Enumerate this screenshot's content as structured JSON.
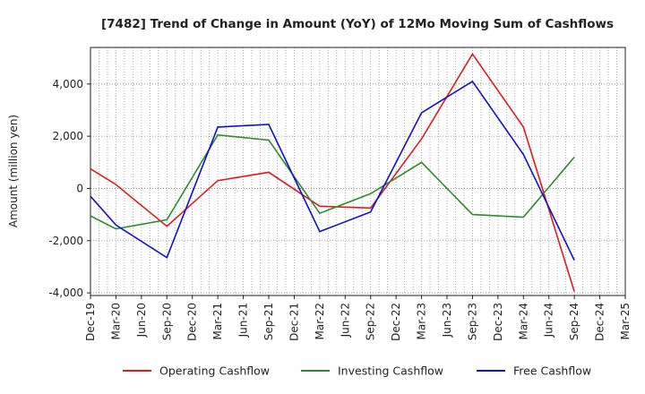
{
  "chart_data": {
    "type": "line",
    "title": "[7482]  Trend of Change in Amount (YoY) of 12Mo Moving Sum of Cashflows",
    "xlabel": "",
    "ylabel": "Amount (million yen)",
    "ylim": [
      -4100,
      5400
    ],
    "yticks": [
      -4000,
      -2000,
      0,
      2000,
      4000
    ],
    "ytick_labels": [
      "-4,000",
      "-2,000",
      "0",
      "2,000",
      "4,000"
    ],
    "grid": true,
    "legend_position": "bottom",
    "categories": [
      "Dec-19",
      "Mar-20",
      "Jun-20",
      "Sep-20",
      "Dec-20",
      "Mar-21",
      "Jun-21",
      "Sep-21",
      "Dec-21",
      "Mar-22",
      "Jun-22",
      "Sep-22",
      "Dec-22",
      "Mar-23",
      "Jun-23",
      "Sep-23",
      "Dec-23",
      "Mar-24",
      "Jun-24",
      "Sep-24",
      "Dec-24",
      "Mar-25"
    ],
    "series": [
      {
        "name": "Operating Cashflow",
        "color": "#e31a1c",
        "values": [
          750,
          150,
          null,
          -1450,
          null,
          300,
          null,
          620,
          null,
          -680,
          null,
          -750,
          null,
          1900,
          null,
          5150,
          null,
          2350,
          null,
          -3950,
          null,
          null
        ]
      },
      {
        "name": "Investing Cashflow",
        "color": "#2e8b2e",
        "values": [
          -1050,
          -1550,
          null,
          -1200,
          null,
          2050,
          null,
          1850,
          null,
          -950,
          null,
          -200,
          null,
          1000,
          null,
          -1000,
          null,
          -1100,
          null,
          1200,
          null,
          null
        ]
      },
      {
        "name": "Free Cashflow",
        "color": "#1010d0",
        "values": [
          -300,
          -1400,
          null,
          -2650,
          null,
          2350,
          null,
          2450,
          null,
          -1650,
          null,
          -900,
          null,
          2900,
          null,
          4100,
          null,
          1300,
          null,
          -2750,
          null,
          null
        ]
      }
    ]
  }
}
